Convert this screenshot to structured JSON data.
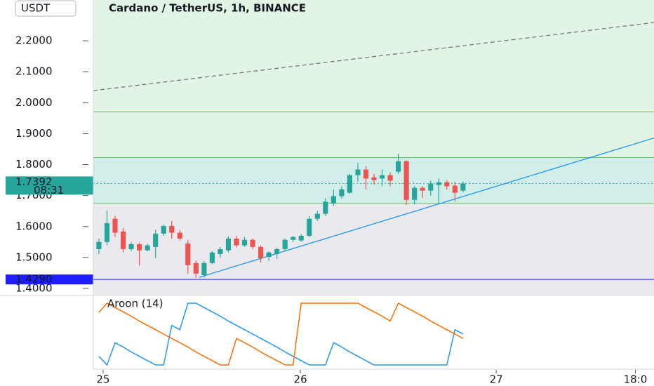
{
  "chart_data": [
    {
      "type": "candlestick",
      "title": "Cardano / TetherUS, 1h, BINANCE",
      "ylabel": "USDT",
      "x": [
        0,
        1,
        2,
        3,
        4,
        5,
        6,
        7,
        8,
        9,
        10,
        11,
        12,
        13,
        14,
        15,
        16,
        17,
        18,
        19,
        20,
        21,
        22,
        23,
        24,
        25,
        26,
        27,
        28,
        29,
        30,
        31,
        32,
        33,
        34,
        35,
        36,
        37,
        38,
        39,
        40,
        41,
        42,
        43,
        44,
        45
      ],
      "open": [
        1.527,
        1.55,
        1.625,
        1.584,
        1.527,
        1.543,
        1.523,
        1.534,
        1.577,
        1.602,
        1.58,
        1.545,
        1.482,
        1.443,
        1.482,
        1.511,
        1.523,
        1.561,
        1.539,
        1.557,
        1.534,
        1.502,
        1.511,
        1.527,
        1.557,
        1.555,
        1.57,
        1.625,
        1.641,
        1.675,
        1.698,
        1.709,
        1.766,
        1.784,
        1.759,
        1.755,
        1.766,
        1.777,
        1.811,
        1.686,
        1.725,
        1.716,
        1.734,
        1.743,
        1.732,
        1.716
      ],
      "high": [
        1.561,
        1.652,
        1.634,
        1.595,
        1.55,
        1.548,
        1.545,
        1.589,
        1.606,
        1.618,
        1.588,
        1.557,
        1.49,
        1.488,
        1.52,
        1.534,
        1.568,
        1.57,
        1.566,
        1.561,
        1.539,
        1.52,
        1.532,
        1.561,
        1.57,
        1.575,
        1.634,
        1.65,
        1.691,
        1.72,
        1.73,
        1.77,
        1.805,
        1.795,
        1.77,
        1.784,
        1.775,
        1.835,
        1.814,
        1.73,
        1.73,
        1.748,
        1.755,
        1.75,
        1.745,
        1.745
      ],
      "low": [
        1.511,
        1.539,
        1.566,
        1.516,
        1.52,
        1.475,
        1.52,
        1.498,
        1.57,
        1.561,
        1.555,
        1.448,
        1.434,
        1.436,
        1.478,
        1.5,
        1.516,
        1.532,
        1.534,
        1.527,
        1.484,
        1.489,
        1.495,
        1.52,
        1.55,
        1.55,
        1.566,
        1.618,
        1.634,
        1.668,
        1.69,
        1.705,
        1.745,
        1.72,
        1.735,
        1.73,
        1.73,
        1.77,
        1.67,
        1.672,
        1.693,
        1.7,
        1.675,
        1.72,
        1.68,
        1.71
      ],
      "close": [
        1.55,
        1.611,
        1.58,
        1.527,
        1.543,
        1.523,
        1.539,
        1.577,
        1.602,
        1.58,
        1.561,
        1.475,
        1.448,
        1.482,
        1.516,
        1.527,
        1.561,
        1.539,
        1.557,
        1.534,
        1.498,
        1.516,
        1.527,
        1.557,
        1.566,
        1.57,
        1.625,
        1.641,
        1.68,
        1.698,
        1.72,
        1.766,
        1.784,
        1.755,
        1.75,
        1.766,
        1.748,
        1.811,
        1.686,
        1.725,
        1.716,
        1.739,
        1.743,
        1.73,
        1.709,
        1.739
      ],
      "up_color": "#26a69a",
      "down_color": "#ef5350",
      "xlim": [
        -0.69,
        68.6
      ],
      "xticks": [
        {
          "value": 0.52,
          "label": "25"
        },
        {
          "value": 24.9,
          "label": "26"
        },
        {
          "value": 49.1,
          "label": "27"
        },
        {
          "value": 66.3,
          "label": "18:0"
        }
      ],
      "ylim": [
        1.3795,
        2.3318
      ],
      "yticks": [
        {
          "value": 1.4,
          "label": "1.4000"
        },
        {
          "value": 1.5,
          "label": "1.5000"
        },
        {
          "value": 1.6,
          "label": "1.6000"
        },
        {
          "value": 1.7,
          "label": "1.7000"
        },
        {
          "value": 1.8,
          "label": "1.8000"
        },
        {
          "value": 1.9,
          "label": "1.9000"
        },
        {
          "value": 2.0,
          "label": "2.0000"
        },
        {
          "value": 2.1,
          "label": "2.1000"
        },
        {
          "value": 2.2,
          "label": "2.2000"
        }
      ],
      "last_price": 1.7392,
      "countdown": "08:31",
      "last_price_color": "#26a69a",
      "price_line": {
        "value": 1.429,
        "label": "1.4290",
        "color": "#1e1eff"
      },
      "levels": [
        1.9705,
        1.8227,
        1.675
      ],
      "level_color": "#66bb6a",
      "zone_colors": [
        "#e2f4e4",
        "#d1eeea",
        "#e9e9ee"
      ],
      "trendlines": [
        {
          "x": [
            12.4,
            68.6
          ],
          "y": [
            1.436,
            1.886
          ],
          "color": "#2196f3",
          "style": "solid"
        },
        {
          "x": [
            -0.69,
            68.6
          ],
          "y": [
            2.039,
            2.259
          ],
          "color": "#777777",
          "style": "dashed"
        }
      ]
    },
    {
      "type": "line",
      "title": "Aroon (14)",
      "x": [
        0,
        1,
        2,
        3,
        4,
        5,
        6,
        7,
        8,
        9,
        10,
        11,
        12,
        13,
        14,
        15,
        16,
        17,
        18,
        19,
        20,
        21,
        22,
        23,
        24,
        25,
        26,
        27,
        28,
        29,
        30,
        31,
        32,
        33,
        34,
        35,
        36,
        37,
        38,
        39,
        40,
        41,
        42,
        43,
        44,
        45
      ],
      "ylim": [
        0,
        100
      ],
      "series": [
        {
          "color": "#2196f3",
          "values": [
            14,
            0,
            36,
            29,
            21,
            14,
            7,
            0,
            0,
            64,
            57,
            100,
            100,
            93,
            86,
            79,
            71,
            64,
            57,
            50,
            43,
            36,
            29,
            21,
            14,
            7,
            0,
            0,
            0,
            36,
            29,
            21,
            14,
            7,
            0,
            0,
            0,
            0,
            0,
            0,
            0,
            0,
            0,
            0,
            57,
            50
          ]
        },
        {
          "color": "#ff6d00",
          "values": [
            85,
            100,
            93,
            86,
            79,
            71,
            64,
            57,
            50,
            43,
            36,
            29,
            21,
            14,
            7,
            0,
            0,
            43,
            36,
            29,
            21,
            14,
            7,
            0,
            0,
            100,
            100,
            100,
            100,
            100,
            100,
            100,
            100,
            93,
            86,
            79,
            71,
            100,
            93,
            86,
            79,
            71,
            64,
            57,
            50,
            43
          ]
        }
      ]
    }
  ]
}
